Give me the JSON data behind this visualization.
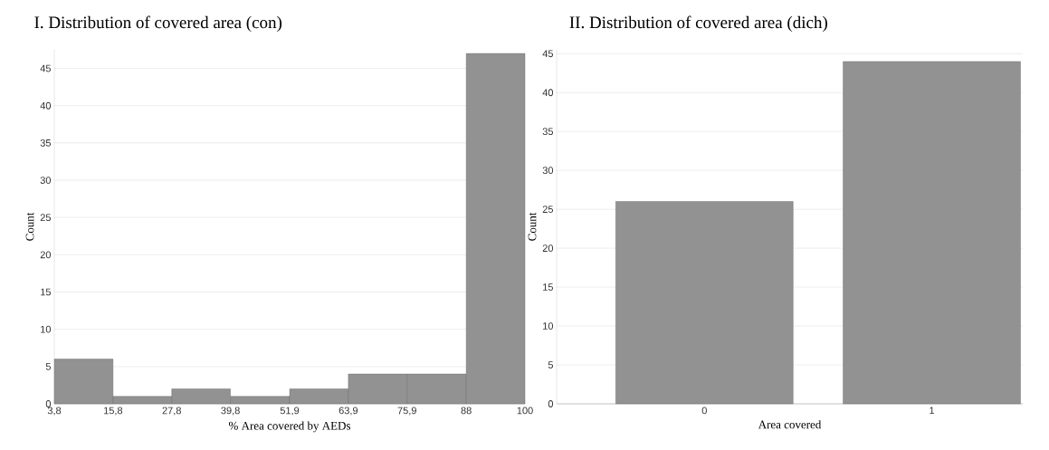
{
  "chart_data": [
    {
      "type": "histogram",
      "title": "I. Distribution of covered area (con)",
      "xlabel": "% Area covered by AEDs",
      "ylabel": "Count",
      "bins": [
        3.8,
        15.8,
        27.8,
        39.8,
        51.9,
        63.9,
        75.9,
        88,
        100
      ],
      "values": [
        6,
        1,
        2,
        1,
        2,
        4,
        4,
        47
      ],
      "color": "#929292",
      "xlim": [
        3.8,
        100
      ],
      "ylim": [
        0,
        47.5
      ],
      "xticks": [
        {
          "value": 3.8,
          "label": "3,8"
        },
        {
          "value": 15.8,
          "label": "15,8"
        },
        {
          "value": 27.8,
          "label": "27,8"
        },
        {
          "value": 39.8,
          "label": "39,8"
        },
        {
          "value": 51.9,
          "label": "51,9"
        },
        {
          "value": 63.9,
          "label": "63,9"
        },
        {
          "value": 75.9,
          "label": "75,9"
        },
        88,
        100
      ],
      "yticks": [
        0,
        5,
        10,
        15,
        20,
        25,
        30,
        35,
        40,
        45
      ],
      "grid": "y"
    },
    {
      "type": "bar",
      "title": "II. Distribution of covered area (dich)",
      "xlabel": "Area covered",
      "ylabel": "Count",
      "categories": [
        "0",
        "1"
      ],
      "values": [
        26,
        44
      ],
      "color": "#929292",
      "ylim": [
        0,
        45.5
      ],
      "yticks": [
        0,
        5,
        10,
        15,
        20,
        25,
        30,
        35,
        40,
        45
      ],
      "grid": "y"
    }
  ]
}
